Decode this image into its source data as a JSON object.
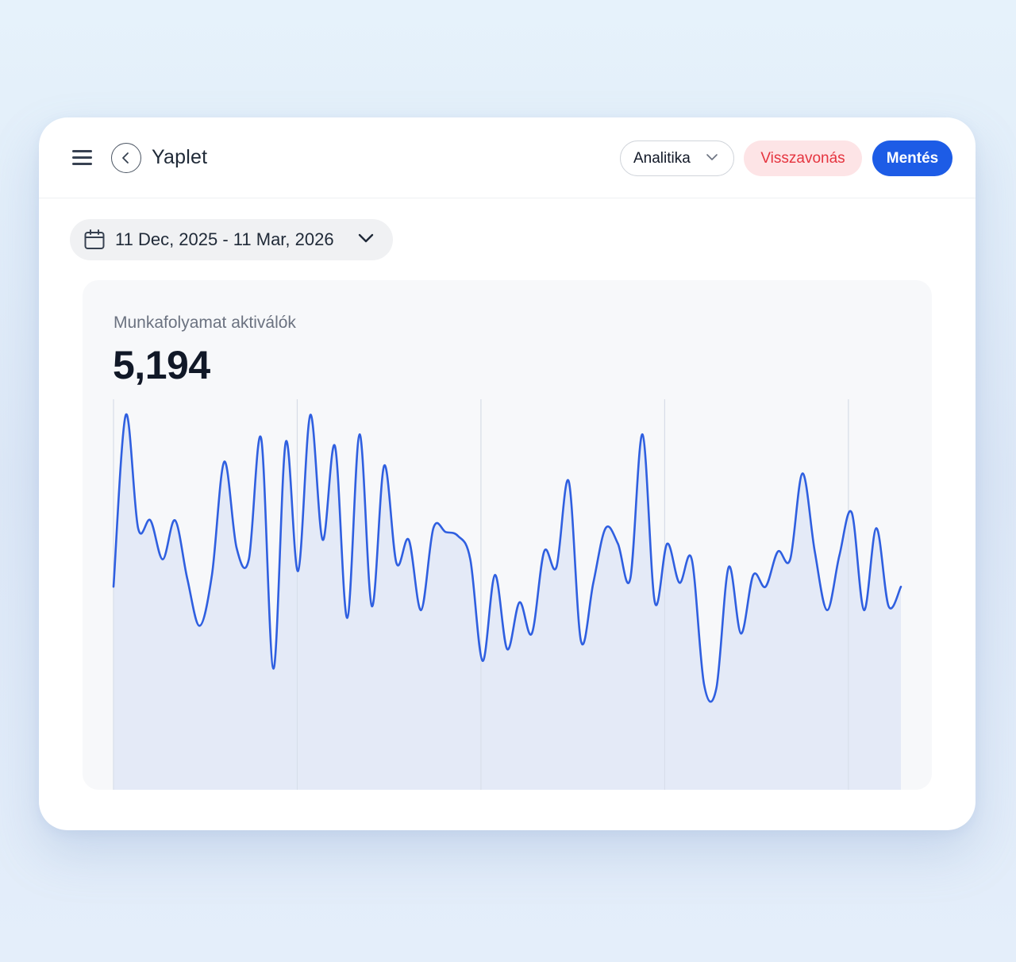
{
  "header": {
    "menu_icon": "hamburger-menu-icon",
    "back_icon": "chevron-left-icon",
    "title": "Yaplet",
    "analytics_label": "Analitika",
    "cancel_label": "Visszavonás",
    "save_label": "Mentés"
  },
  "date_range": {
    "icon": "calendar-icon",
    "label": "11 Dec, 2025 - 11 Mar, 2026"
  },
  "metric": {
    "label": "Munkafolyamat aktiválók",
    "value": "5,194"
  },
  "colors": {
    "accent": "#1d5ce6",
    "cancel": "#e5343f",
    "line": "#2f5fe0",
    "fill": "#e1e8f6"
  },
  "chart_data": {
    "type": "area",
    "title": "",
    "xlabel": "",
    "ylabel": "",
    "x_range": [
      "2025-12-11",
      "2026-03-11"
    ],
    "vertical_grid": true,
    "grid_dates": [
      "2025-12-11",
      "2026-01-01",
      "2026-01-22",
      "2026-02-12",
      "2026-03-05"
    ],
    "ylim": [
      0,
      100
    ],
    "series": [
      {
        "values": [
          52,
          96,
          67,
          69,
          59,
          69,
          54,
          42,
          55,
          84,
          62,
          59,
          90,
          31,
          89,
          56,
          96,
          64,
          88,
          44,
          91,
          47,
          83,
          58,
          64,
          46,
          67,
          66,
          65,
          59,
          33,
          55,
          36,
          48,
          40,
          61,
          57,
          79,
          38,
          53,
          67,
          63,
          54,
          91,
          48,
          63,
          53,
          59,
          27,
          26,
          57,
          40,
          55,
          52,
          61,
          59,
          81,
          61,
          46,
          60,
          71,
          46,
          67,
          47,
          52
        ]
      }
    ]
  }
}
